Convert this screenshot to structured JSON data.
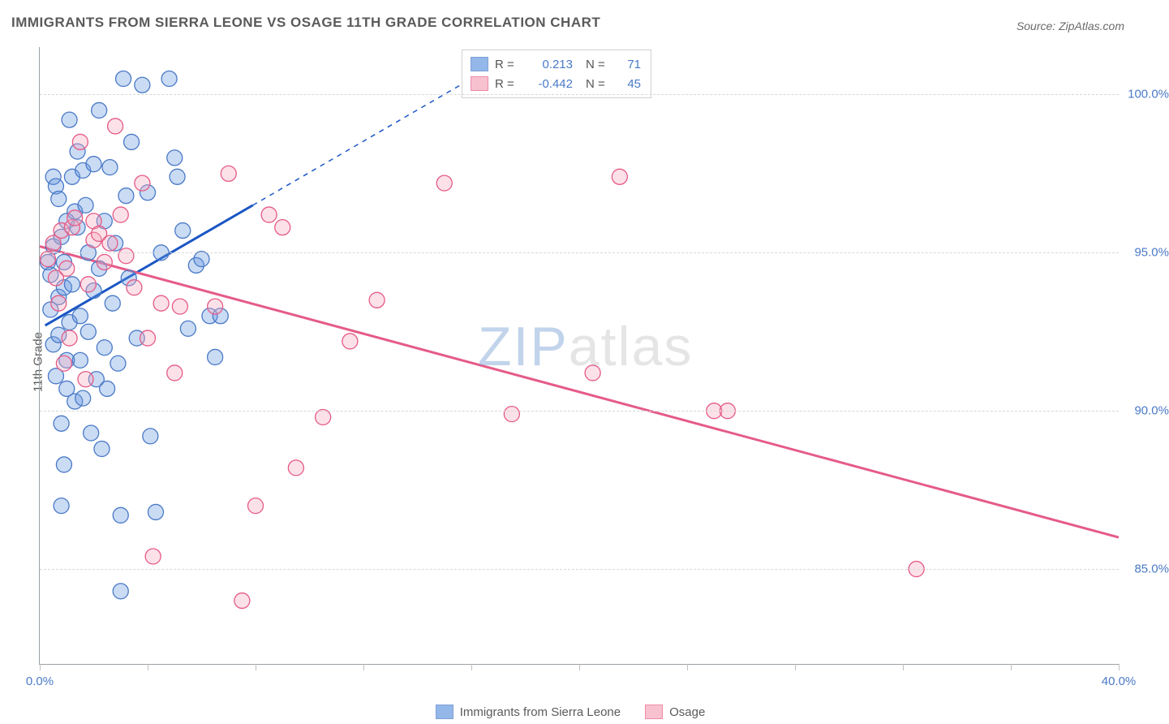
{
  "title": "IMMIGRANTS FROM SIERRA LEONE VS OSAGE 11TH GRADE CORRELATION CHART",
  "source_label": "Source: ZipAtlas.com",
  "ylabel": "11th Grade",
  "watermark": {
    "zip": "ZIP",
    "atlas": "atlas"
  },
  "chart": {
    "type": "scatter",
    "xlim": [
      0,
      40
    ],
    "ylim": [
      82,
      101.5
    ],
    "x_ticks": [
      0,
      4,
      8,
      12,
      16,
      20,
      24,
      28,
      32,
      36,
      40
    ],
    "x_tick_labels": {
      "0": "0.0%",
      "40": "40.0%"
    },
    "y_gridlines": [
      85,
      90,
      95,
      100
    ],
    "y_tick_labels": {
      "85": "85.0%",
      "90": "90.0%",
      "95": "95.0%",
      "100": "100.0%"
    },
    "grid_color": "#d8d8d8",
    "axis_color": "#9aa0a6",
    "background_color": "#ffffff",
    "tick_label_color": "#4a7ac7",
    "marker_radius": 9.5,
    "marker_stroke_width": 1.3,
    "marker_fill_opacity": 0.35,
    "series": [
      {
        "name": "Immigrants from Sierra Leone",
        "color": "#6699e0",
        "stroke": "#4a7ac7",
        "trend_color": "#1a56c4",
        "trend_width": 3,
        "r_value": "0.213",
        "n_value": "71",
        "trend_solid": {
          "x1": 0.2,
          "y1": 92.7,
          "x2": 7.9,
          "y2": 96.5
        },
        "trend_dashed": {
          "x1": 7.9,
          "y1": 96.5,
          "x2": 16.0,
          "y2": 100.5
        },
        "points": [
          [
            0.3,
            94.7
          ],
          [
            0.4,
            94.3
          ],
          [
            0.4,
            93.2
          ],
          [
            0.5,
            95.2
          ],
          [
            0.5,
            92.1
          ],
          [
            0.5,
            97.4
          ],
          [
            0.6,
            91.1
          ],
          [
            0.6,
            97.1
          ],
          [
            0.7,
            96.7
          ],
          [
            0.7,
            93.6
          ],
          [
            0.7,
            92.4
          ],
          [
            0.8,
            89.6
          ],
          [
            0.8,
            95.5
          ],
          [
            0.8,
            87.0
          ],
          [
            0.9,
            93.9
          ],
          [
            0.9,
            94.7
          ],
          [
            0.9,
            88.3
          ],
          [
            1.0,
            96.0
          ],
          [
            1.0,
            91.6
          ],
          [
            1.0,
            90.7
          ],
          [
            1.1,
            99.2
          ],
          [
            1.1,
            92.8
          ],
          [
            1.2,
            97.4
          ],
          [
            1.2,
            94.0
          ],
          [
            1.3,
            96.3
          ],
          [
            1.3,
            90.3
          ],
          [
            1.4,
            95.8
          ],
          [
            1.4,
            98.2
          ],
          [
            1.5,
            91.6
          ],
          [
            1.5,
            93.0
          ],
          [
            1.6,
            97.6
          ],
          [
            1.6,
            90.4
          ],
          [
            1.7,
            96.5
          ],
          [
            1.8,
            92.5
          ],
          [
            1.8,
            95.0
          ],
          [
            1.9,
            89.3
          ],
          [
            2.0,
            93.8
          ],
          [
            2.0,
            97.8
          ],
          [
            2.1,
            91.0
          ],
          [
            2.2,
            99.5
          ],
          [
            2.2,
            94.5
          ],
          [
            2.3,
            88.8
          ],
          [
            2.4,
            92.0
          ],
          [
            2.4,
            96.0
          ],
          [
            2.5,
            90.7
          ],
          [
            2.6,
            97.7
          ],
          [
            2.7,
            93.4
          ],
          [
            2.8,
            95.3
          ],
          [
            2.9,
            91.5
          ],
          [
            3.0,
            86.7
          ],
          [
            3.0,
            84.3
          ],
          [
            3.1,
            100.5
          ],
          [
            3.2,
            96.8
          ],
          [
            3.3,
            94.2
          ],
          [
            3.4,
            98.5
          ],
          [
            3.6,
            92.3
          ],
          [
            3.8,
            100.3
          ],
          [
            4.0,
            96.9
          ],
          [
            4.1,
            89.2
          ],
          [
            4.3,
            86.8
          ],
          [
            4.5,
            95.0
          ],
          [
            4.8,
            100.5
          ],
          [
            5.0,
            98.0
          ],
          [
            5.1,
            97.4
          ],
          [
            5.3,
            95.7
          ],
          [
            5.5,
            92.6
          ],
          [
            5.8,
            94.6
          ],
          [
            6.0,
            94.8
          ],
          [
            6.3,
            93.0
          ],
          [
            6.5,
            91.7
          ],
          [
            6.7,
            93.0
          ]
        ]
      },
      {
        "name": "Osage",
        "color": "#f6a8bd",
        "stroke": "#e55b87",
        "trend_color": "#e55b87",
        "trend_width": 3,
        "r_value": "-0.442",
        "n_value": "45",
        "trend_solid": {
          "x1": 0,
          "y1": 95.2,
          "x2": 40,
          "y2": 86.0
        },
        "points": [
          [
            0.3,
            94.8
          ],
          [
            0.5,
            95.3
          ],
          [
            0.6,
            94.2
          ],
          [
            0.7,
            93.4
          ],
          [
            0.8,
            95.7
          ],
          [
            0.9,
            91.5
          ],
          [
            1.0,
            94.5
          ],
          [
            1.1,
            92.3
          ],
          [
            1.2,
            95.8
          ],
          [
            1.3,
            96.1
          ],
          [
            1.5,
            98.5
          ],
          [
            1.7,
            91.0
          ],
          [
            1.8,
            94.0
          ],
          [
            2.0,
            95.4
          ],
          [
            2.0,
            96.0
          ],
          [
            2.2,
            95.6
          ],
          [
            2.4,
            94.7
          ],
          [
            2.6,
            95.3
          ],
          [
            2.8,
            99.0
          ],
          [
            3.0,
            96.2
          ],
          [
            3.2,
            94.9
          ],
          [
            3.5,
            93.9
          ],
          [
            3.8,
            97.2
          ],
          [
            4.0,
            92.3
          ],
          [
            4.2,
            85.4
          ],
          [
            4.5,
            93.4
          ],
          [
            5.0,
            91.2
          ],
          [
            5.2,
            93.3
          ],
          [
            6.5,
            93.3
          ],
          [
            7.0,
            97.5
          ],
          [
            7.5,
            84.0
          ],
          [
            8.0,
            87.0
          ],
          [
            8.5,
            96.2
          ],
          [
            9.0,
            95.8
          ],
          [
            9.5,
            88.2
          ],
          [
            10.5,
            89.8
          ],
          [
            11.5,
            92.2
          ],
          [
            12.5,
            93.5
          ],
          [
            15.0,
            97.2
          ],
          [
            17.5,
            89.9
          ],
          [
            20.5,
            91.2
          ],
          [
            21.5,
            97.4
          ],
          [
            25.0,
            90.0
          ],
          [
            32.5,
            85.0
          ],
          [
            25.5,
            90.0
          ]
        ]
      }
    ]
  },
  "legend_labels": {
    "r": "R =",
    "n": "N ="
  }
}
